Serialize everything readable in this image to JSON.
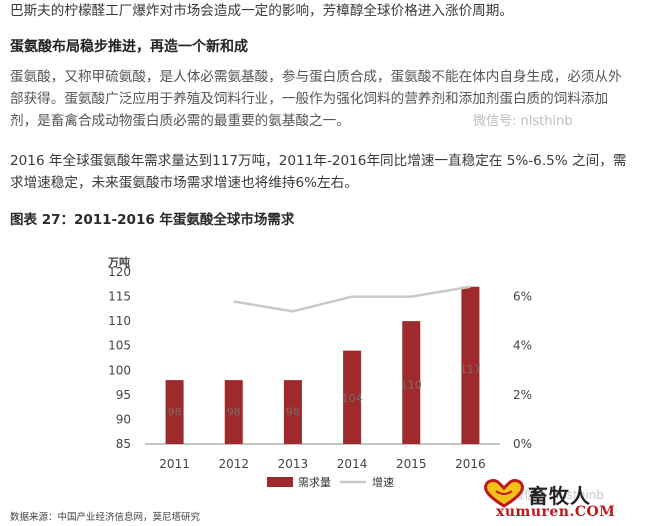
{
  "article": {
    "intro_line": "巴斯夫的柠檬醛工厂爆炸对市场会造成一定的影响，芳樟醇全球价格进入涨价周期。",
    "section_heading": "蛋氨酸布局稳步推进，再造一个新和成",
    "quote_paragraph": "蛋氨酸，又称甲硫氨酸，是人体必需氨基酸，参与蛋白质合成，蛋氨酸不能在体内自身生成，必须从外部获得。蛋氨酸广泛应用于养殖及饲料行业，一般作为强化饲料的营养剂和添加剂蛋白质的饲料添加剂，是畜禽合成动物蛋白质必需的最重要的氨基酸之一。",
    "body_paragraph": "2016 年全球蛋氨酸年需求量达到117万吨，2011年-2016年同比增速一直稳定在 5%-6.5% 之间，需求增速稳定，未来蛋氨酸市场需求增速也将维持6%左右。",
    "figure_title": "图表 27：2011-2016 年蛋氨酸全球市场需求",
    "source": "数据来源：中国产业经济信息网，莫尼塔研究"
  },
  "watermarks": {
    "wechat_mid": "微信号: nlsthinb",
    "wechat_bottom": "微信号: nlsthinb"
  },
  "logo": {
    "name": "畜牧人",
    "url": "xumuren.COM",
    "colors": {
      "red": "#c0171c",
      "yellow": "#f2c21b"
    }
  },
  "chart_data": {
    "type": "bar",
    "categories": [
      "2011",
      "2012",
      "2013",
      "2014",
      "2015",
      "2016"
    ],
    "series": [
      {
        "name": "需求量",
        "kind": "bar",
        "axis": "left",
        "values": [
          98,
          98,
          98,
          104,
          110,
          117
        ],
        "color": "#9e2a2b"
      },
      {
        "name": "增速",
        "kind": "line",
        "axis": "right",
        "values": [
          null,
          5.8,
          5.4,
          6.0,
          6.0,
          6.4
        ],
        "color": "#c9c9c9"
      }
    ],
    "ylabel": "万吨",
    "ylim": [
      85,
      120
    ],
    "yticks": [
      "85",
      "90",
      "95",
      "100",
      "105",
      "110",
      "115",
      "120"
    ],
    "y2lim": [
      0,
      7
    ],
    "y2ticks": [
      "0%",
      "2%",
      "4%",
      "6%"
    ],
    "bar_labels": [
      "98",
      "98",
      "98",
      "104",
      "110",
      "117"
    ],
    "legend": {
      "position": "bottom-center"
    },
    "grid": false
  }
}
